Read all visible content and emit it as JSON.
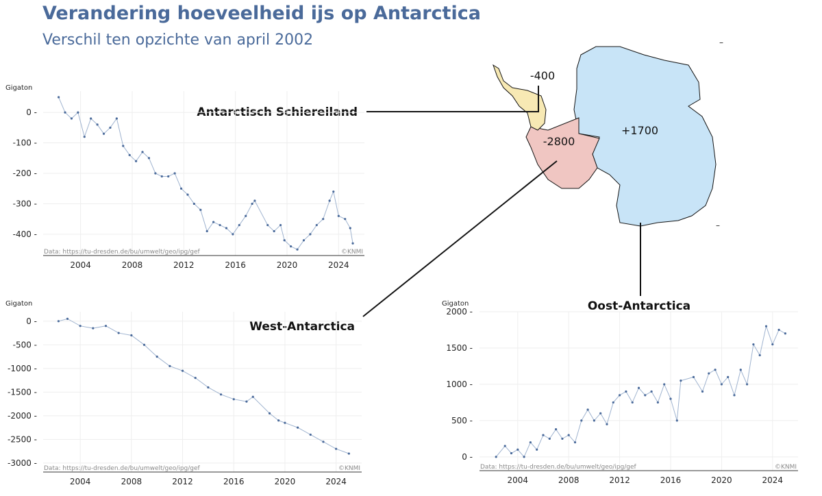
{
  "header": {
    "title": "Verandering hoeveelheid ijs op Antarctica",
    "subtitle": "Verschil ten opzichte van april 2002"
  },
  "map": {
    "regions": [
      {
        "name": "Antarctisch Schiereiland",
        "value": "-400",
        "color": "#f7e9b4"
      },
      {
        "name": "West-Antarctica",
        "value": "-2800",
        "color": "#f0c6c2"
      },
      {
        "name": "Oost-Antarctica",
        "value": "+1700",
        "color": "#c8e4f7"
      }
    ]
  },
  "chart_data": [
    {
      "type": "line",
      "title": "Antarctisch Schiereiland",
      "ylabel": "Gigaton",
      "source": "Data: https://tu-dresden.de/bu/umwelt/geo/ipg/gef",
      "credit": "©KNMI",
      "xticks": [
        2004,
        2008,
        2012,
        2016,
        2020,
        2024
      ],
      "yticks": [
        0,
        -100,
        -200,
        -300,
        -400
      ],
      "ylim": [
        -470,
        70
      ],
      "xlim": [
        2001.1,
        2026
      ],
      "color": "#4a6a9a",
      "x": [
        2002.3,
        2002.8,
        2003.3,
        2003.8,
        2004.3,
        2004.8,
        2005.3,
        2005.8,
        2006.3,
        2006.8,
        2007.3,
        2007.8,
        2008.3,
        2008.8,
        2009.3,
        2009.8,
        2010.3,
        2010.8,
        2011.3,
        2011.8,
        2012.3,
        2012.8,
        2013.3,
        2013.8,
        2014.3,
        2014.8,
        2015.3,
        2015.8,
        2016.3,
        2016.8,
        2017.3,
        2017.5,
        2018.5,
        2019.0,
        2019.5,
        2019.8,
        2020.3,
        2020.8,
        2021.3,
        2021.8,
        2022.3,
        2022.8,
        2023.3,
        2023.6,
        2024.0,
        2024.5,
        2024.9,
        2025.1
      ],
      "y": [
        50,
        0,
        -20,
        0,
        -80,
        -20,
        -40,
        -70,
        -50,
        -20,
        -110,
        -140,
        -160,
        -130,
        -150,
        -200,
        -210,
        -210,
        -200,
        -250,
        -270,
        -300,
        -320,
        -390,
        -360,
        -370,
        -380,
        -400,
        -370,
        -340,
        -300,
        -290,
        -370,
        -390,
        -370,
        -420,
        -440,
        -450,
        -420,
        -400,
        -370,
        -350,
        -290,
        -260,
        -340,
        -350,
        -380,
        -430
      ]
    },
    {
      "type": "line",
      "title": "West-Antarctica",
      "ylabel": "Gigaton",
      "source": "Data: https://tu-dresden.de/bu/umwelt/geo/ipg/gef",
      "credit": "©KNMI",
      "xticks": [
        2004,
        2008,
        2012,
        2016,
        2020,
        2024
      ],
      "yticks": [
        0,
        -500,
        -1000,
        -1500,
        -2000,
        -2500,
        -3000
      ],
      "ylim": [
        -3190,
        200
      ],
      "xlim": [
        2001.1,
        2026
      ],
      "color": "#4a6a9a",
      "x": [
        2002.3,
        2003,
        2004,
        2005,
        2006,
        2007,
        2008,
        2009,
        2010,
        2011,
        2012,
        2013,
        2014,
        2015,
        2016,
        2017,
        2017.5,
        2018.8,
        2019.5,
        2020,
        2021,
        2022,
        2023,
        2024,
        2025
      ],
      "y": [
        0,
        50,
        -100,
        -150,
        -100,
        -250,
        -300,
        -500,
        -750,
        -950,
        -1050,
        -1200,
        -1400,
        -1550,
        -1650,
        -1700,
        -1600,
        -1950,
        -2100,
        -2150,
        -2250,
        -2400,
        -2550,
        -2700,
        -2800
      ]
    },
    {
      "type": "line",
      "title": "Oost-Antarctica",
      "ylabel": "Gigaton",
      "source": "Data: https://tu-dresden.de/bu/umwelt/geo/ipg/gef",
      "credit": "©KNMI",
      "xticks": [
        2004,
        2008,
        2012,
        2016,
        2020,
        2024
      ],
      "yticks": [
        0,
        500,
        1000,
        1500,
        2000
      ],
      "ylim": [
        -190,
        2000
      ],
      "xlim": [
        2001,
        2026
      ],
      "color": "#4a6a9a",
      "x": [
        2002.3,
        2003,
        2003.5,
        2004,
        2004.5,
        2005,
        2005.5,
        2006,
        2006.5,
        2007,
        2007.5,
        2008,
        2008.5,
        2009,
        2009.5,
        2010,
        2010.5,
        2011,
        2011.5,
        2012,
        2012.5,
        2013,
        2013.5,
        2014,
        2014.5,
        2015,
        2015.5,
        2016,
        2016.5,
        2016.8,
        2017.8,
        2018.5,
        2019,
        2019.5,
        2020,
        2020.5,
        2021,
        2021.5,
        2022,
        2022.5,
        2023,
        2023.5,
        2024,
        2024.5,
        2025
      ],
      "y": [
        0,
        150,
        50,
        100,
        0,
        200,
        100,
        300,
        250,
        380,
        250,
        300,
        200,
        500,
        650,
        500,
        600,
        450,
        750,
        850,
        900,
        750,
        950,
        850,
        900,
        750,
        1000,
        800,
        500,
        1050,
        1100,
        900,
        1150,
        1200,
        1000,
        1100,
        850,
        1200,
        1000,
        1550,
        1400,
        1800,
        1550,
        1750,
        1700
      ]
    }
  ]
}
